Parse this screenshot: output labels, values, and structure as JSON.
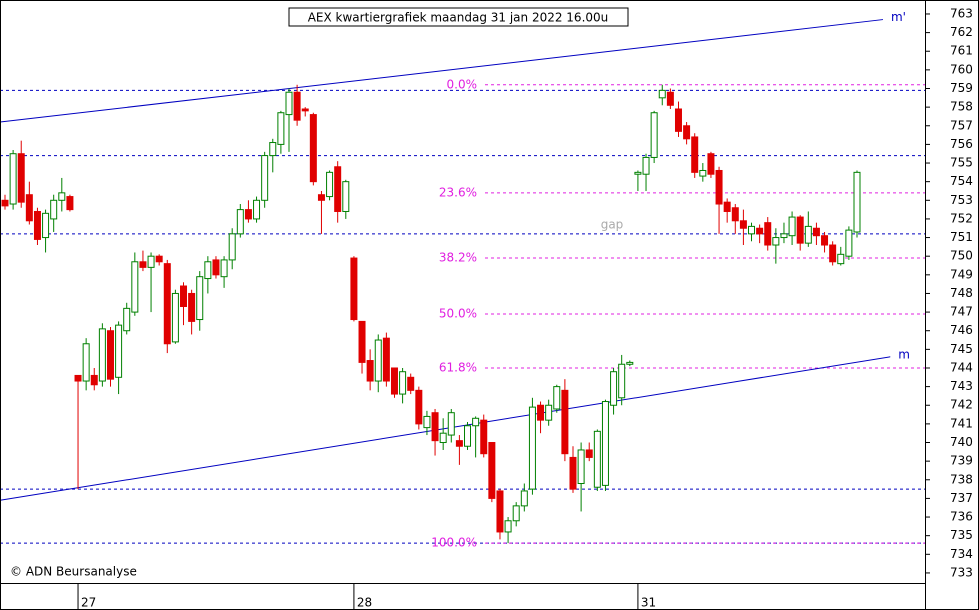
{
  "chart_data": {
    "type": "candlestick",
    "title": "AEX kwartiergrafiek maandag 31 jan 2022 16.00u",
    "copyright": "© ADN Beursanalyse",
    "annotation": "gap",
    "categories": [
      null,
      null,
      null,
      null,
      null,
      null,
      null,
      null,
      null,
      "27",
      null,
      null,
      null,
      null,
      null,
      null,
      null,
      null,
      null,
      null,
      null,
      null,
      null,
      null,
      null,
      null,
      null,
      null,
      null,
      null,
      null,
      null,
      null,
      null,
      null,
      null,
      null,
      null,
      null,
      null,
      null,
      null,
      null,
      "28",
      null,
      null,
      null,
      null,
      null,
      null,
      null,
      null,
      null,
      null,
      null,
      null,
      null,
      null,
      null,
      null,
      null,
      null,
      null,
      null,
      null,
      null,
      null,
      null,
      null,
      null,
      null,
      null,
      null,
      null,
      null,
      null,
      null,
      null,
      "31",
      null,
      null,
      null,
      null,
      null,
      null,
      null,
      null,
      null,
      null,
      null,
      null,
      null,
      null,
      null,
      null,
      null,
      null,
      null,
      null,
      null,
      null,
      null,
      null,
      null,
      null,
      null
    ],
    "open": [
      753,
      752.8,
      755.5,
      753.3,
      752.4,
      751,
      752,
      753,
      753.2,
      743.6,
      743.3,
      743.6,
      743.3,
      746,
      743.5,
      746,
      747,
      749.7,
      749.4,
      750,
      749.6,
      745.4,
      748.4,
      748,
      746.6,
      748.8,
      749.8,
      748.9,
      749.8,
      751.2,
      752.5,
      752,
      753,
      755.4,
      756,
      757.6,
      758.8,
      757.9,
      757.6,
      753.3,
      753.2,
      754.8,
      752.4,
      749.9,
      746.5,
      744.4,
      743.3,
      745.6,
      744,
      742.6,
      743.5,
      742.8,
      740.8,
      741.6,
      740,
      740.4,
      740.1,
      739.8,
      740.9,
      741.2,
      740,
      737.4,
      735.2,
      735.8,
      736.6,
      737.5,
      742,
      741.2,
      741.8,
      742.8,
      739.2,
      737.8,
      739.6,
      737.6,
      737.7,
      742,
      742.4,
      744.2,
      754.4,
      754.4,
      755.3,
      758.5,
      758.8,
      757.9,
      757,
      756.4,
      754.3,
      755.5,
      754.6,
      752.9,
      752.6,
      751.9,
      751.2,
      751.5,
      751.8,
      750.6,
      751,
      751.1,
      752.1,
      750.7,
      751.5,
      751.1,
      750.6,
      749.6,
      750,
      751.3
    ],
    "high": [
      753.3,
      755.7,
      756.2,
      754,
      752.6,
      752.5,
      753.3,
      754.2,
      753.3,
      743.6,
      745.6,
      744,
      746.4,
      746.2,
      746.5,
      747.5,
      750.2,
      750.3,
      750.2,
      750.1,
      749.8,
      748.2,
      748.6,
      748.2,
      749.2,
      750,
      750,
      750,
      751.5,
      752.8,
      753,
      753.2,
      755.6,
      756.3,
      757.8,
      759,
      759.2,
      758,
      757.7,
      753.5,
      754.6,
      755.1,
      754.1,
      750,
      746.5,
      745,
      745.8,
      745.9,
      744,
      744,
      743.7,
      743,
      741.7,
      741.8,
      741.3,
      741.8,
      740.4,
      741.1,
      741.4,
      741.5,
      740,
      737.5,
      736,
      736.8,
      737.8,
      742.4,
      742.2,
      742.3,
      743.1,
      743.4,
      739.8,
      740,
      740,
      740.7,
      742.3,
      744,
      744.7,
      744.4,
      754.6,
      755.5,
      757.8,
      759.2,
      759,
      758.3,
      757.2,
      756.6,
      755,
      755.6,
      754.8,
      753.1,
      752.8,
      752.5,
      751.8,
      751.7,
      752.1,
      751.5,
      751.8,
      752.4,
      752.2,
      752.4,
      751.8,
      751.3,
      750.8,
      750.5,
      751.6,
      754.6
    ],
    "low": [
      752.5,
      752.5,
      752.6,
      751.7,
      750.6,
      750.2,
      751.3,
      752.4,
      752.4,
      737.5,
      742.8,
      742.8,
      743,
      743,
      742.6,
      745.8,
      746.8,
      749.2,
      747,
      749.5,
      744.8,
      745.3,
      746.3,
      745.8,
      746,
      748,
      748.8,
      748.3,
      749.3,
      751,
      751.8,
      751.8,
      752.6,
      754.5,
      755.5,
      755.6,
      757,
      757.5,
      753.8,
      751.2,
      753,
      751.8,
      752,
      746.5,
      743.7,
      742.8,
      742.7,
      743,
      742.4,
      742.1,
      742.6,
      740.7,
      740.4,
      739.3,
      739.6,
      740,
      738.8,
      739.6,
      739.2,
      739.2,
      736.8,
      734.8,
      734.6,
      735.5,
      736.3,
      737.2,
      740.5,
      740.9,
      741.6,
      739,
      737.3,
      736.3,
      739,
      737.4,
      737.4,
      741.5,
      742,
      744.1,
      753.5,
      753.5,
      755,
      758.1,
      757.9,
      756.4,
      756,
      754.2,
      754,
      754.2,
      751.2,
      751.8,
      751.2,
      750.6,
      750.8,
      750.7,
      750.3,
      749.6,
      750.7,
      750.6,
      750.3,
      750.5,
      750.6,
      750.2,
      749.5,
      749.5,
      749.8,
      751
    ],
    "close": [
      752.7,
      755.5,
      752.9,
      751.9,
      750.9,
      752.3,
      753,
      753.4,
      752.5,
      743.3,
      745.3,
      743.1,
      746.1,
      743.4,
      746.3,
      747.2,
      749.7,
      749.4,
      750,
      749.7,
      745.3,
      748,
      747.3,
      746.5,
      748.9,
      749.7,
      749,
      749.8,
      751.2,
      752.5,
      752,
      753,
      755.4,
      756.1,
      757.7,
      758.8,
      757.3,
      757.8,
      754,
      753,
      754.5,
      752.4,
      754,
      746.6,
      744.3,
      743.3,
      745.5,
      743.3,
      742.6,
      743.8,
      742.8,
      741,
      741.4,
      740.1,
      740.5,
      741.6,
      739.8,
      740.9,
      741.3,
      739.4,
      737,
      735.2,
      735.8,
      736.6,
      737.4,
      741.9,
      741.2,
      742,
      743,
      739.4,
      737.5,
      739.6,
      739.2,
      740.6,
      742.2,
      743.8,
      744.2,
      744.3,
      754.5,
      755.3,
      757.7,
      758.9,
      758.1,
      756.7,
      756.3,
      754.5,
      754.6,
      754.4,
      752.8,
      752.4,
      751.9,
      751.5,
      751.6,
      751.2,
      750.6,
      751,
      751.2,
      752.1,
      750.7,
      751.6,
      751.1,
      750.6,
      749.7,
      750.1,
      751.4,
      754.5
    ],
    "up_color": "#008000",
    "down_color": "#e00000",
    "ylim": [
      732.46,
      763.75
    ],
    "yticks": [
      733,
      734,
      735,
      736,
      737,
      738,
      739,
      740,
      741,
      742,
      743,
      744,
      745,
      746,
      747,
      748,
      749,
      750,
      751,
      752,
      753,
      754,
      755,
      756,
      757,
      758,
      759,
      760,
      761,
      762,
      763
    ],
    "hlines": [
      758.9,
      755.4,
      751.2,
      737.5,
      734.6
    ],
    "hline_color": "#0000c0",
    "fib_levels": [
      {
        "value": 759.2,
        "label": "0.0%"
      },
      {
        "value": 753.4,
        "label": "23.6%"
      },
      {
        "value": 749.9,
        "label": "38.2%"
      },
      {
        "value": 746.9,
        "label": "50.0%"
      },
      {
        "value": 744.0,
        "label": "61.8%"
      },
      {
        "value": 734.6,
        "label": "100.0%"
      }
    ],
    "fib_color": "#e020e0",
    "trendlines": [
      {
        "name": "m'",
        "x": [
          -0.6,
          108.2
        ],
        "values": [
          757.2,
          762.7
        ]
      },
      {
        "name": "m",
        "x": [
          -0.6,
          109.1
        ],
        "values": [
          736.9,
          744.6
        ]
      }
    ],
    "trend_color": "#0000c0"
  }
}
